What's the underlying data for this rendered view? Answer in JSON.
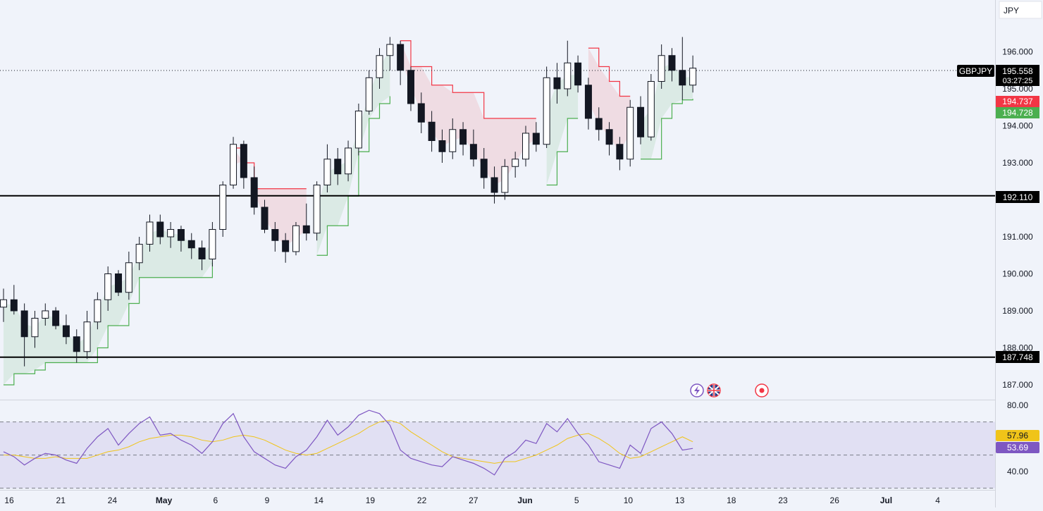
{
  "app": {
    "currency": "JPY",
    "symbol": "GBPJPY",
    "last_price": "195.558",
    "countdown": "03:27:25",
    "supertrend_down_label": "194.737",
    "supertrend_up_label": "194.728",
    "rsi_ma_label": "57.96",
    "rsi_label": "53.69",
    "h_lines": [
      "192.110",
      "187.748"
    ],
    "colors": {
      "up": "#089981",
      "down": "#f23645",
      "st_up": "#4caf50",
      "st_down": "#f23645",
      "st_up_fill": "rgba(76,175,80,0.12)",
      "st_down_fill": "rgba(242,54,69,0.12)",
      "rsi_line": "#7e57c2",
      "rsi_ma": "#f0c419",
      "rsi_band": "rgba(126,87,194,0.12)",
      "price_tag": "#000000"
    },
    "events": [
      "lightning-icon",
      "uk-flag-icon",
      "record-icon"
    ]
  },
  "chart_data": {
    "type": "candlestick",
    "price_axis": {
      "ticks": [
        "196.000",
        "195.000",
        "194.000",
        "193.000",
        "191.000",
        "190.000",
        "189.000",
        "188.000",
        "187.000"
      ],
      "range": [
        186.6,
        197.4
      ]
    },
    "rsi_axis": {
      "ticks": [
        "80.00",
        "40.00"
      ],
      "range": [
        29,
        83
      ],
      "band": [
        70,
        30
      ],
      "mid": 50
    },
    "time_axis": [
      "16",
      "21",
      "24",
      "May",
      "6",
      "9",
      "14",
      "19",
      "22",
      "27",
      "Jun",
      "5",
      "10",
      "13",
      "18",
      "23",
      "26",
      "Jul",
      "4"
    ],
    "candles": [
      [
        189.1,
        189.6,
        188.7,
        189.3
      ],
      [
        189.3,
        189.7,
        188.9,
        189.0
      ],
      [
        189.0,
        189.2,
        187.5,
        188.3
      ],
      [
        188.3,
        189.0,
        188.0,
        188.8
      ],
      [
        188.8,
        189.2,
        188.6,
        189.0
      ],
      [
        189.0,
        189.1,
        188.5,
        188.6
      ],
      [
        188.6,
        188.9,
        188.1,
        188.3
      ],
      [
        188.3,
        188.5,
        187.6,
        187.9
      ],
      [
        187.9,
        189.0,
        187.7,
        188.7
      ],
      [
        188.7,
        189.5,
        188.5,
        189.3
      ],
      [
        189.3,
        190.2,
        189.0,
        190.0
      ],
      [
        190.0,
        190.1,
        189.4,
        189.5
      ],
      [
        189.5,
        190.6,
        189.3,
        190.3
      ],
      [
        190.3,
        191.0,
        190.1,
        190.8
      ],
      [
        190.8,
        191.6,
        190.6,
        191.4
      ],
      [
        191.4,
        191.6,
        190.8,
        191.0
      ],
      [
        191.0,
        191.4,
        190.7,
        191.2
      ],
      [
        191.2,
        191.3,
        190.6,
        190.9
      ],
      [
        190.9,
        191.1,
        190.4,
        190.7
      ],
      [
        190.7,
        190.9,
        190.1,
        190.4
      ],
      [
        190.4,
        191.4,
        190.2,
        191.2
      ],
      [
        191.2,
        192.5,
        191.0,
        192.4
      ],
      [
        192.4,
        193.7,
        192.3,
        193.5
      ],
      [
        193.5,
        193.6,
        192.3,
        192.6
      ],
      [
        192.6,
        192.9,
        191.6,
        191.8
      ],
      [
        191.8,
        192.0,
        191.1,
        191.2
      ],
      [
        191.2,
        191.4,
        190.6,
        190.9
      ],
      [
        190.9,
        191.1,
        190.3,
        190.6
      ],
      [
        190.6,
        191.4,
        190.5,
        191.3
      ],
      [
        191.3,
        191.9,
        190.9,
        191.1
      ],
      [
        191.1,
        192.5,
        190.9,
        192.4
      ],
      [
        192.4,
        193.5,
        192.2,
        193.1
      ],
      [
        193.1,
        193.4,
        192.4,
        192.7
      ],
      [
        192.7,
        193.6,
        192.5,
        193.4
      ],
      [
        193.4,
        194.6,
        193.2,
        194.4
      ],
      [
        194.4,
        195.5,
        194.3,
        195.3
      ],
      [
        195.3,
        196.1,
        195.0,
        195.9
      ],
      [
        195.9,
        196.4,
        195.5,
        196.2
      ],
      [
        196.2,
        196.3,
        195.1,
        195.5
      ],
      [
        195.5,
        195.6,
        194.4,
        194.6
      ],
      [
        194.6,
        194.9,
        193.8,
        194.1
      ],
      [
        194.1,
        194.4,
        193.3,
        193.6
      ],
      [
        193.6,
        193.9,
        193.0,
        193.3
      ],
      [
        193.3,
        194.2,
        193.1,
        193.9
      ],
      [
        193.9,
        194.1,
        193.2,
        193.5
      ],
      [
        193.5,
        193.9,
        192.9,
        193.1
      ],
      [
        193.1,
        193.4,
        192.3,
        192.6
      ],
      [
        192.6,
        192.9,
        191.9,
        192.2
      ],
      [
        192.2,
        193.1,
        192.0,
        192.9
      ],
      [
        192.9,
        193.3,
        192.6,
        193.1
      ],
      [
        193.1,
        194.0,
        192.9,
        193.8
      ],
      [
        193.8,
        194.1,
        193.3,
        193.5
      ],
      [
        193.5,
        195.6,
        193.4,
        195.3
      ],
      [
        195.3,
        195.7,
        194.6,
        195.0
      ],
      [
        195.0,
        196.3,
        194.8,
        195.7
      ],
      [
        195.7,
        195.9,
        194.9,
        195.1
      ],
      [
        195.1,
        195.3,
        193.9,
        194.2
      ],
      [
        194.2,
        194.5,
        193.6,
        193.9
      ],
      [
        193.9,
        194.1,
        193.2,
        193.5
      ],
      [
        193.5,
        193.7,
        192.8,
        193.1
      ],
      [
        193.1,
        194.7,
        192.9,
        194.5
      ],
      [
        194.5,
        194.8,
        193.5,
        193.7
      ],
      [
        193.7,
        195.4,
        193.6,
        195.2
      ],
      [
        195.2,
        196.2,
        195.0,
        195.9
      ],
      [
        195.9,
        196.1,
        195.2,
        195.5
      ],
      [
        195.5,
        196.4,
        194.7,
        195.1
      ],
      [
        195.1,
        195.9,
        194.9,
        195.558
      ]
    ],
    "rsi": [
      52,
      49,
      44,
      48,
      51,
      50,
      47,
      45,
      54,
      61,
      66,
      56,
      63,
      69,
      73,
      62,
      63,
      59,
      56,
      51,
      58,
      69,
      75,
      61,
      52,
      48,
      44,
      42,
      49,
      53,
      61,
      71,
      62,
      67,
      74,
      77,
      75,
      68,
      53,
      48,
      46,
      44,
      43,
      49,
      47,
      45,
      42,
      38,
      48,
      52,
      59,
      57,
      69,
      64,
      72,
      63,
      56,
      46,
      44,
      42,
      56,
      51,
      66,
      70,
      63,
      53,
      54
    ],
    "rsi_ma": [
      50,
      50,
      49,
      48,
      48,
      49,
      48,
      48,
      48,
      50,
      52,
      53,
      55,
      58,
      60,
      61,
      62,
      62,
      61,
      59,
      58,
      59,
      61,
      62,
      61,
      59,
      56,
      53,
      51,
      50,
      51,
      54,
      57,
      60,
      63,
      67,
      70,
      71,
      69,
      64,
      60,
      56,
      52,
      49,
      48,
      47,
      46,
      45,
      46,
      46,
      48,
      50,
      53,
      56,
      60,
      62,
      63,
      60,
      56,
      51,
      48,
      49,
      52,
      55,
      58,
      61,
      58
    ],
    "supertrend": [
      {
        "dir": "up",
        "start": 0,
        "end": 20,
        "v": [
          187.0,
          187.3,
          187.3,
          187.4,
          187.6,
          187.6,
          187.6,
          187.6,
          187.6,
          188.0,
          188.6,
          188.6,
          189.2,
          189.9,
          189.9,
          189.9,
          189.9,
          189.9,
          189.9,
          189.9,
          190.3
        ]
      },
      {
        "dir": "down",
        "start": 22,
        "end": 29,
        "v": [
          193.4,
          193.0,
          192.3,
          192.3,
          192.3,
          192.3,
          192.3,
          192.3
        ]
      },
      {
        "dir": "up",
        "start": 30,
        "end": 37,
        "v": [
          190.5,
          191.3,
          191.3,
          192.1,
          193.3,
          194.2,
          194.6,
          194.8
        ]
      },
      {
        "dir": "down",
        "start": 38,
        "end": 51,
        "v": [
          196.3,
          195.6,
          195.6,
          195.1,
          195.1,
          194.9,
          194.9,
          194.9,
          194.2,
          194.2,
          194.2,
          194.2,
          194.2,
          194.2
        ]
      },
      {
        "dir": "up",
        "start": 52,
        "end": 55,
        "v": [
          192.4,
          193.3,
          194.2,
          194.2
        ]
      },
      {
        "dir": "down",
        "start": 56,
        "end": 60,
        "v": [
          196.1,
          195.6,
          195.2,
          194.8,
          194.8
        ]
      },
      {
        "dir": "up",
        "start": 61,
        "end": 66,
        "v": [
          193.1,
          193.1,
          194.2,
          194.6,
          194.7,
          194.728
        ]
      }
    ]
  }
}
